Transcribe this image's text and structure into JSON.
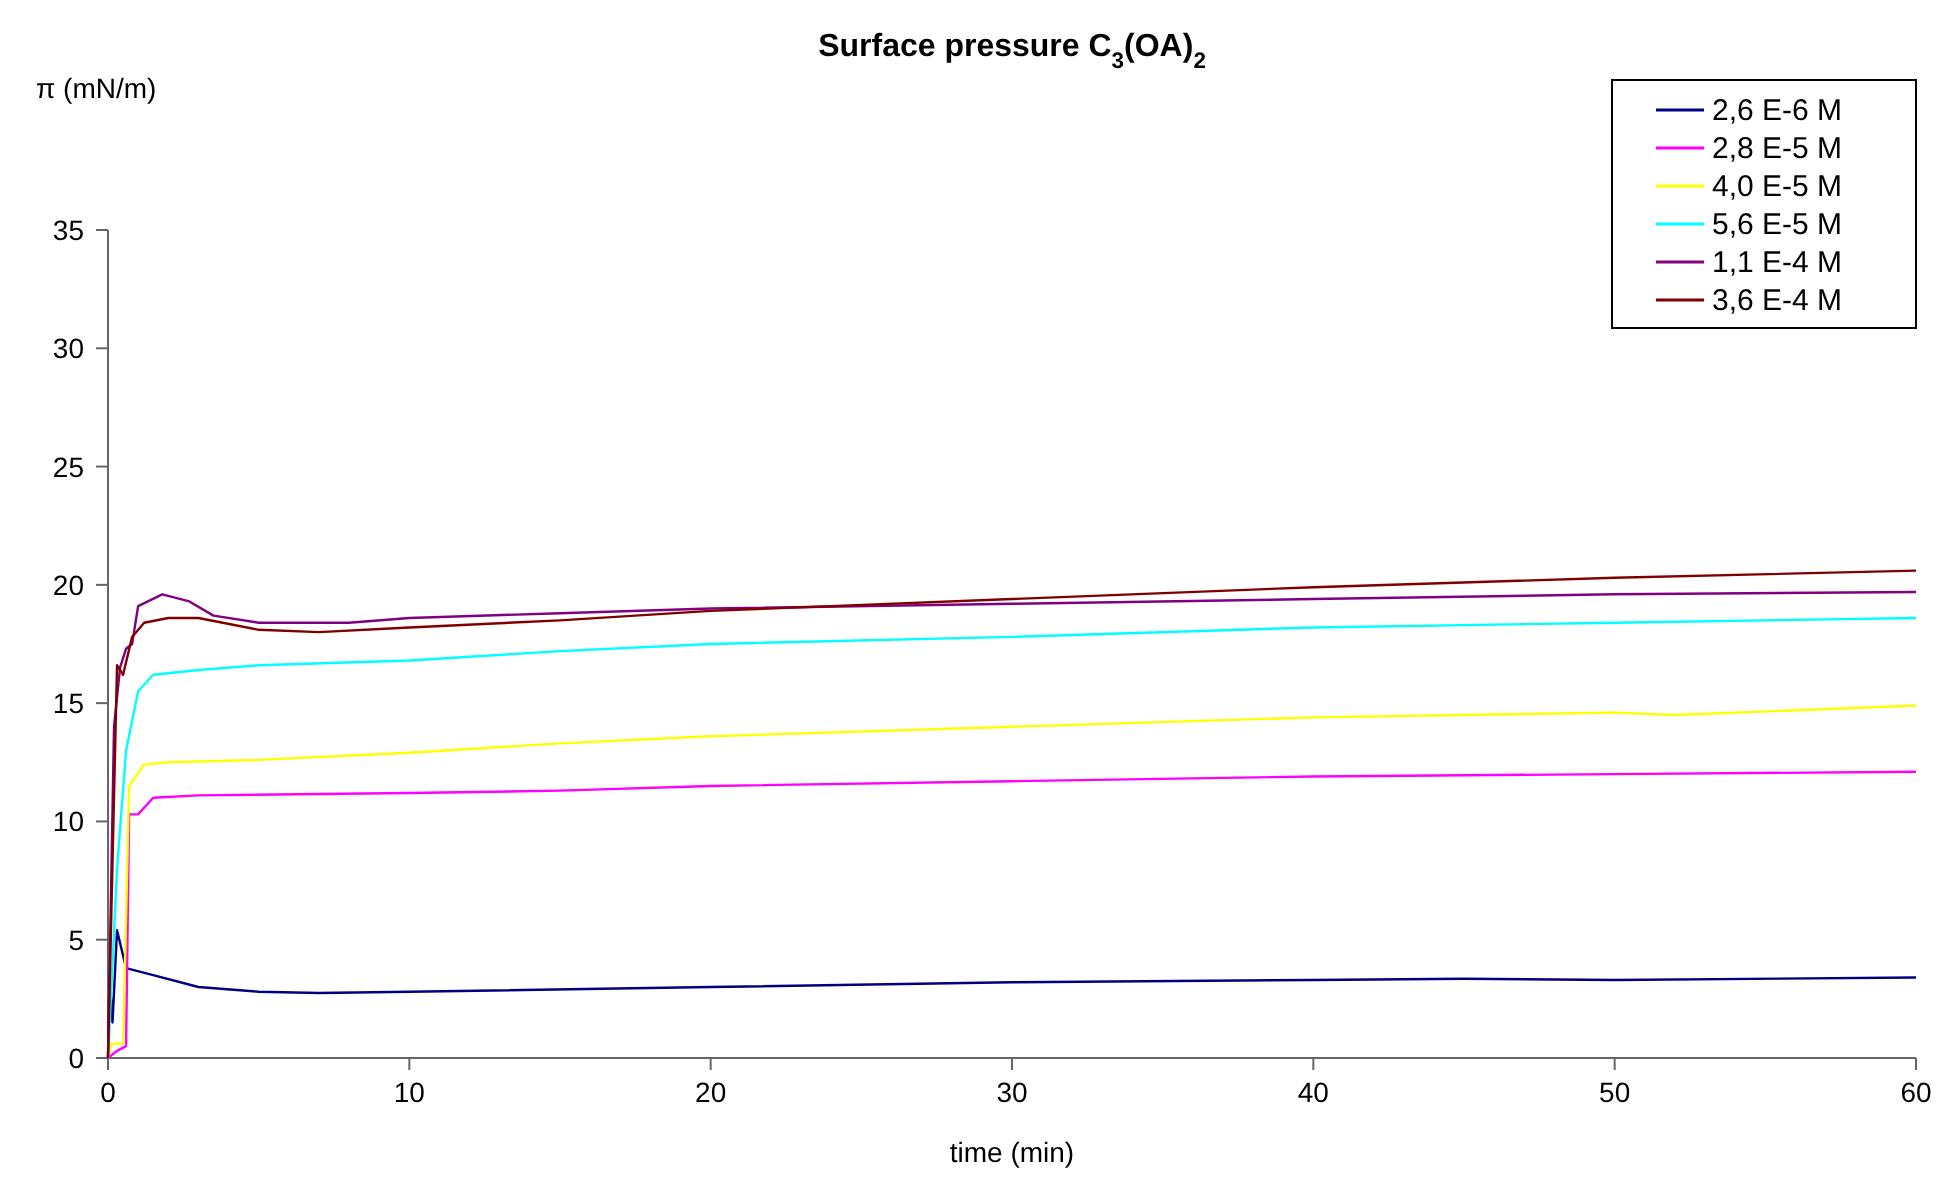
{
  "chart_data": {
    "type": "line",
    "title": "Surface pressure C$_{3}$(OA)$_{2}$",
    "xlabel": "time (min)",
    "ylabel": "π (mN/m)",
    "xlim": [
      0,
      60
    ],
    "xticks": [
      0,
      10,
      20,
      30,
      40,
      50,
      60
    ],
    "ylim": [
      0,
      35
    ],
    "yticks": [
      0,
      5,
      10,
      15,
      20,
      25,
      30,
      35
    ],
    "grid": false,
    "legend": "top right",
    "marker": "none",
    "line_style": "solid",
    "series": [
      {
        "name": "2,6 E-6 M",
        "color": "#000080",
        "x": [
          0,
          0.05,
          0.15,
          0.3,
          0.6,
          1.5,
          3,
          5,
          7,
          10,
          20,
          30,
          40,
          45,
          50,
          60
        ],
        "values": [
          0,
          3.5,
          1.5,
          5.4,
          3.8,
          3.5,
          3.0,
          2.8,
          2.75,
          2.8,
          3.0,
          3.2,
          3.3,
          3.35,
          3.3,
          3.4
        ]
      },
      {
        "name": "2,8 E-5 M",
        "color": "#ff00ff",
        "x": [
          0,
          0.3,
          0.6,
          0.7,
          1.0,
          1.5,
          3,
          10,
          15,
          20,
          30,
          40,
          50,
          60
        ],
        "values": [
          0,
          0.3,
          0.5,
          10.3,
          10.3,
          11.0,
          11.1,
          11.2,
          11.3,
          11.5,
          11.7,
          11.9,
          12.0,
          12.1
        ]
      },
      {
        "name": "4,0 E-5 M",
        "color": "#ffff00",
        "x": [
          0,
          0.1,
          0.5,
          0.7,
          1.2,
          2,
          5,
          10,
          15,
          20,
          30,
          40,
          50,
          52,
          60
        ],
        "values": [
          0,
          0.6,
          0.6,
          11.5,
          12.4,
          12.5,
          12.6,
          12.9,
          13.3,
          13.6,
          14.0,
          14.4,
          14.6,
          14.5,
          14.9
        ]
      },
      {
        "name": "5,6 E-5 M",
        "color": "#00ffff",
        "x": [
          0,
          0.3,
          0.6,
          1.0,
          1.5,
          3,
          5,
          10,
          15,
          20,
          30,
          40,
          50,
          60
        ],
        "values": [
          0,
          8,
          13,
          15.5,
          16.2,
          16.4,
          16.6,
          16.8,
          17.2,
          17.5,
          17.8,
          18.2,
          18.4,
          18.6
        ]
      },
      {
        "name": "1,1 E-4 M",
        "color": "#800080",
        "x": [
          0,
          0.2,
          0.4,
          0.6,
          0.8,
          1.0,
          1.8,
          2.7,
          3.5,
          5,
          8,
          10,
          15,
          20,
          30,
          40,
          50,
          60
        ],
        "values": [
          0,
          14,
          16.5,
          17.3,
          17.5,
          19.1,
          19.6,
          19.3,
          18.7,
          18.4,
          18.4,
          18.6,
          18.8,
          19.0,
          19.2,
          19.4,
          19.6,
          19.7
        ]
      },
      {
        "name": "3,6 E-4 M",
        "color": "#800000",
        "x": [
          0,
          0.3,
          0.5,
          0.8,
          1.2,
          2,
          3,
          5,
          7,
          10,
          15,
          20,
          30,
          40,
          50,
          60
        ],
        "values": [
          0,
          16.6,
          16.2,
          17.8,
          18.4,
          18.6,
          18.6,
          18.1,
          18.0,
          18.2,
          18.5,
          18.9,
          19.4,
          19.9,
          20.3,
          20.6
        ]
      }
    ]
  }
}
